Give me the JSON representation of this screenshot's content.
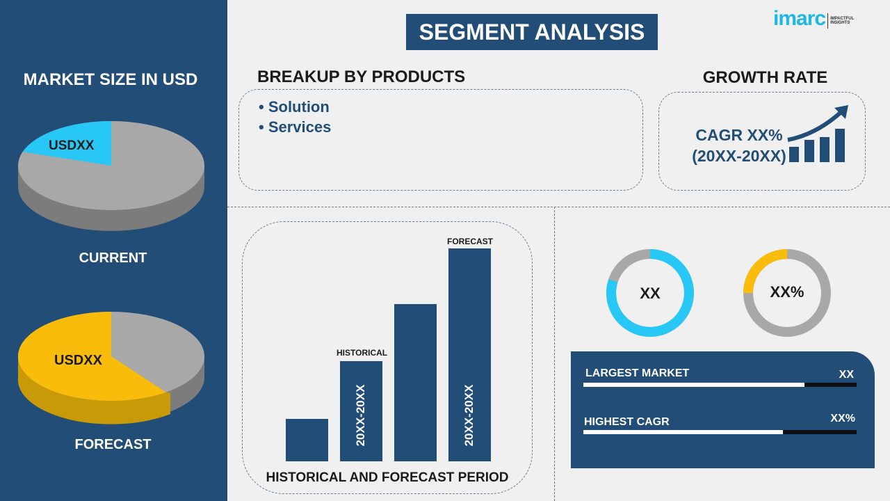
{
  "brand": {
    "logo_text": "imarc",
    "tagline": "IMPACTFUL INSIGHTS",
    "accent": "#1fb8e6"
  },
  "title": "SEGMENT ANALYSIS",
  "market_size": {
    "heading": "MARKET SIZE IN USD",
    "current": {
      "label": "CURRENT",
      "value": "USDXX",
      "share": 0.2,
      "color": "#27c8f5"
    },
    "forecast": {
      "label": "FORECAST",
      "value": "USDXX",
      "share": 0.6,
      "color": "#f9bc0b"
    }
  },
  "breakup": {
    "heading": "BREAKUP BY PRODUCTS",
    "items": [
      "Solution",
      "Services"
    ]
  },
  "growth": {
    "heading": "GROWTH RATE",
    "cagr": "CAGR XX%",
    "period": "(20XX-20XX)"
  },
  "period_chart": {
    "footer": "HISTORICAL AND FORECAST PERIOD",
    "historical_label": "HISTORICAL",
    "forecast_label": "FORECAST",
    "historical_range": "20XX-20XX",
    "forecast_range": "20XX-20XX",
    "relative_values": [
      20,
      47,
      74,
      100
    ]
  },
  "donuts": [
    {
      "label": "XX",
      "share": 0.8,
      "color": "#27c8f5"
    },
    {
      "label": "XX%",
      "share": 0.25,
      "color": "#f9bc0b"
    }
  ],
  "stats": [
    {
      "label": "LARGEST MARKET",
      "value": "XX",
      "fill": 0.81
    },
    {
      "label": "HIGHEST CAGR",
      "value": "XX%",
      "fill": 0.73
    }
  ]
}
